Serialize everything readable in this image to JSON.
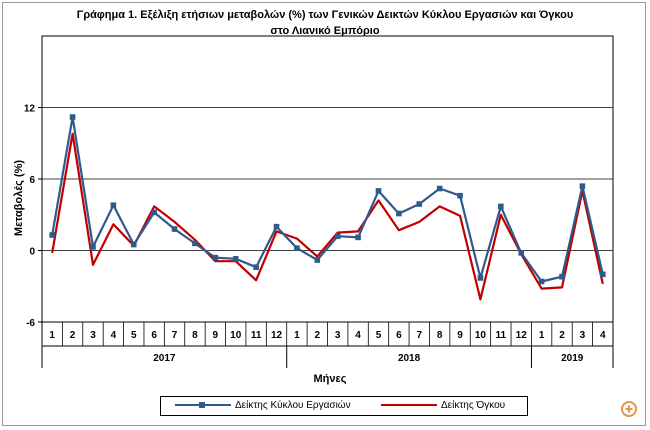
{
  "chart_data": {
    "type": "line",
    "title": "Γράφημα 1. Εξέλιξη ετήσιων μεταβολών (%) των Γενικών Δεικτών Κύκλου Εργασιών και Όγκου",
    "subtitle": "στο Λιανικό Εμπόριο",
    "xlabel": "Μήνες",
    "ylabel": "Μεταβολές (%)",
    "ylim": [
      -6,
      18
    ],
    "yticks": [
      -6,
      0,
      6,
      12
    ],
    "grid": true,
    "legend_position": "bottom",
    "categories": [
      "1",
      "2",
      "3",
      "4",
      "5",
      "6",
      "7",
      "8",
      "9",
      "10",
      "11",
      "12",
      "1",
      "2",
      "3",
      "4",
      "5",
      "6",
      "7",
      "8",
      "9",
      "10",
      "11",
      "12",
      "1",
      "2",
      "3",
      "4"
    ],
    "year_groups": [
      {
        "label": "2017",
        "start": 0,
        "count": 12
      },
      {
        "label": "2018",
        "start": 12,
        "count": 12
      },
      {
        "label": "2019",
        "start": 24,
        "count": 4
      }
    ],
    "series": [
      {
        "name": "Δείκτης Κύκλου Εργασιών",
        "color": "#2e5a8c",
        "marker": "square",
        "values": [
          1.3,
          11.2,
          0.3,
          3.8,
          0.5,
          3.2,
          1.8,
          0.6,
          -0.6,
          -0.7,
          -1.4,
          2.0,
          0.2,
          -0.8,
          1.2,
          1.1,
          5.0,
          3.1,
          3.9,
          5.2,
          4.6,
          -2.3,
          3.7,
          -0.2,
          -2.6,
          -2.2,
          5.4,
          -2.0
        ]
      },
      {
        "name": "Δείκτης Όγκου",
        "color": "#c00000",
        "marker": "none",
        "values": [
          -0.2,
          9.8,
          -1.2,
          2.2,
          0.4,
          3.7,
          2.4,
          0.9,
          -0.9,
          -0.9,
          -2.5,
          1.6,
          1.0,
          -0.5,
          1.5,
          1.6,
          4.2,
          1.7,
          2.4,
          3.7,
          2.9,
          -4.1,
          3.0,
          -0.3,
          -3.2,
          -3.1,
          5.0,
          -2.8
        ]
      }
    ]
  },
  "legend": {
    "series1_label": "Δείκτης Κύκλου Εργασιών",
    "series2_label": "Δείκτης Όγκου"
  },
  "zoom_icon": "zoom-in-icon"
}
